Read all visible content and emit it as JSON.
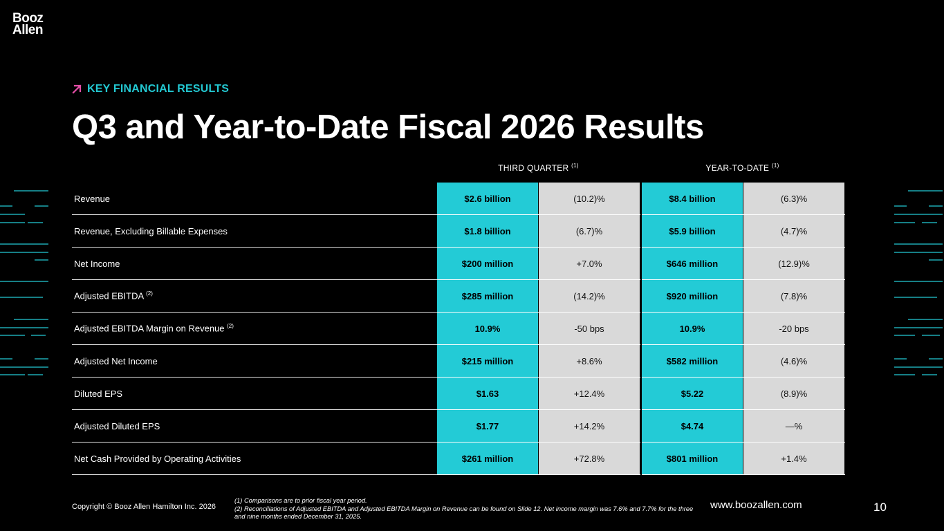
{
  "brand": {
    "logo_line1": "Booz",
    "logo_line2": "Allen"
  },
  "header": {
    "eyebrow": "KEY FINANCIAL RESULTS",
    "title": "Q3 and Year-to-Date Fiscal 2026 Results"
  },
  "table": {
    "col_q": {
      "label": "THIRD QUARTER",
      "note": "(1)"
    },
    "col_y": {
      "label": "YEAR-TO-DATE",
      "note": "(1)"
    },
    "rows": [
      {
        "label": "Revenue",
        "note": "",
        "q_value": "$2.6 billion",
        "q_change": "(10.2)%",
        "y_value": "$8.4 billion",
        "y_change": "(6.3)%"
      },
      {
        "label": "Revenue, Excluding Billable Expenses",
        "note": "",
        "q_value": "$1.8 billion",
        "q_change": "(6.7)%",
        "y_value": "$5.9 billion",
        "y_change": "(4.7)%"
      },
      {
        "label": "Net Income",
        "note": "",
        "q_value": "$200 million",
        "q_change": "+7.0%",
        "y_value": "$646 million",
        "y_change": "(12.9)%"
      },
      {
        "label": "Adjusted EBITDA",
        "note": "(2)",
        "q_value": "$285 million",
        "q_change": "(14.2)%",
        "y_value": "$920 million",
        "y_change": "(7.8)%"
      },
      {
        "label": "Adjusted EBITDA Margin on Revenue",
        "note": "(2)",
        "q_value": "10.9%",
        "q_change": "-50 bps",
        "y_value": "10.9%",
        "y_change": "-20 bps"
      },
      {
        "label": "Adjusted Net Income",
        "note": "",
        "q_value": "$215 million",
        "q_change": "+8.6%",
        "y_value": "$582 million",
        "y_change": "(4.6)%"
      },
      {
        "label": "Diluted EPS",
        "note": "",
        "q_value": "$1.63",
        "q_change": "+12.4%",
        "y_value": "$5.22",
        "y_change": "(8.9)%"
      },
      {
        "label": "Adjusted Diluted EPS",
        "note": "",
        "q_value": "$1.77",
        "q_change": "+14.2%",
        "y_value": "$4.74",
        "y_change": "—%"
      },
      {
        "label": "Net Cash Provided by Operating Activities",
        "note": "",
        "q_value": "$261 million",
        "q_change": "+72.8%",
        "y_value": "$801 million",
        "y_change": "+1.4%"
      }
    ]
  },
  "footer": {
    "copyright": "Copyright © Booz Allen Hamilton Inc. 2026",
    "footnote1": "(1) Comparisons are to prior fiscal year period.",
    "footnote2": "(2) Reconciliations of Adjusted EBITDA and Adjusted EBITDA Margin on Revenue can be found on Slide 12. Net income margin was 7.6%  and 7.7% for the three and nine months ended December 31, 2025.",
    "website": "www.boozallen.com",
    "page_number": "10"
  },
  "colors": {
    "accent": "#23cbd6",
    "arrow": "#e64fa8",
    "change_cell": "#d9d9d9"
  }
}
